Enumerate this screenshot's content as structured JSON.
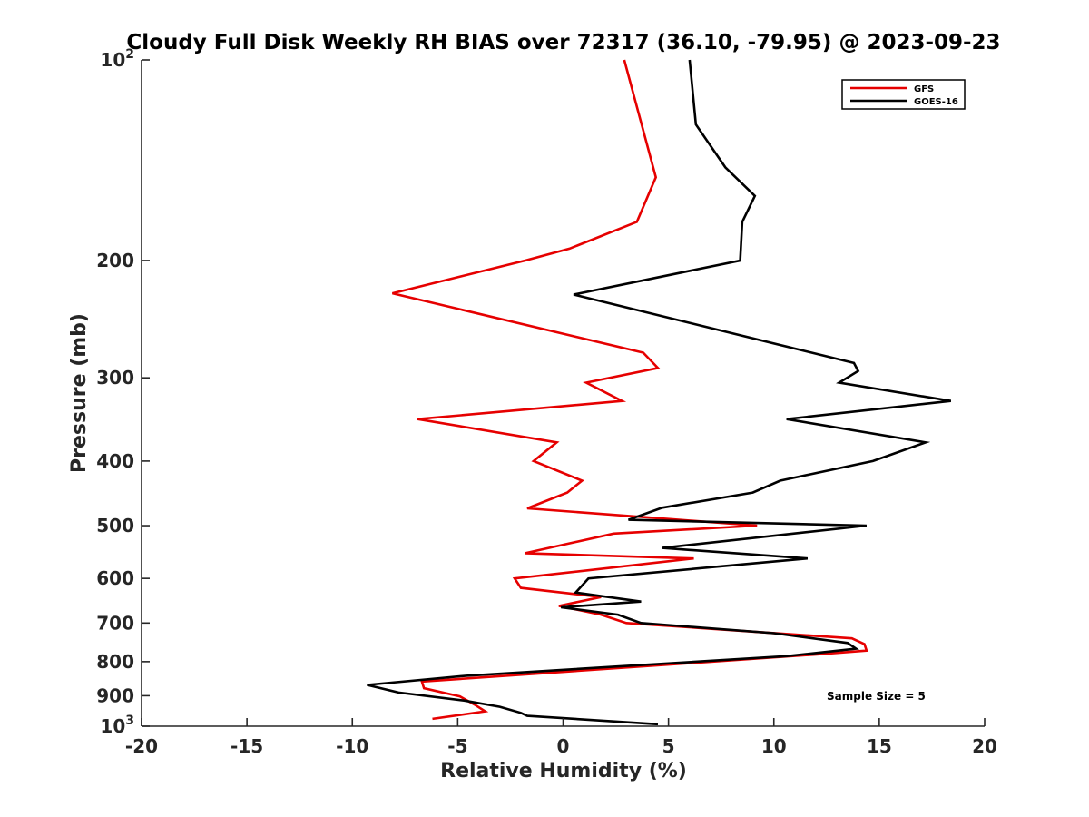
{
  "chart_data": {
    "type": "line",
    "title": "Cloudy Full Disk Weekly RH BIAS over 72317 (36.10, -79.95) @ 2023-09-23",
    "xlabel": "Relative Humidity (%)",
    "ylabel": "Pressure (mb)",
    "xlim": [
      -20,
      20
    ],
    "ylim": [
      100,
      1000
    ],
    "y_scale": "log",
    "y_reversed": true,
    "x_ticks": [
      -20,
      -15,
      -10,
      -5,
      0,
      5,
      10,
      15,
      20
    ],
    "x_tick_labels": [
      "-20",
      "-15",
      "-10",
      "-5",
      "0",
      "5",
      "10",
      "15",
      "20"
    ],
    "y_ticks": [
      100,
      200,
      300,
      400,
      500,
      600,
      700,
      800,
      900,
      1000
    ],
    "y_tick_labels": [
      {
        "base": "10",
        "exp": "2"
      },
      {
        "base": "200",
        "exp": ""
      },
      {
        "base": "300",
        "exp": ""
      },
      {
        "base": "400",
        "exp": ""
      },
      {
        "base": "500",
        "exp": ""
      },
      {
        "base": "600",
        "exp": ""
      },
      {
        "base": "700",
        "exp": ""
      },
      {
        "base": "800",
        "exp": ""
      },
      {
        "base": "900",
        "exp": ""
      },
      {
        "base": "10",
        "exp": "3"
      }
    ],
    "grid": false,
    "legend_position": "top-right",
    "annotation": "Sample Size = 5",
    "series": [
      {
        "name": "GFS",
        "color": "#e60000",
        "points": [
          [
            2.9,
            100
          ],
          [
            4.4,
            150
          ],
          [
            3.5,
            175
          ],
          [
            0.3,
            192
          ],
          [
            -1.8,
            200
          ],
          [
            -8.1,
            224
          ],
          [
            3.8,
            275
          ],
          [
            4.5,
            290
          ],
          [
            1.1,
            305
          ],
          [
            2.8,
            325
          ],
          [
            -6.9,
            346
          ],
          [
            -0.3,
            375
          ],
          [
            -1.4,
            400
          ],
          [
            0.9,
            428
          ],
          [
            0.2,
            446
          ],
          [
            -1.7,
            471
          ],
          [
            9.2,
            500
          ],
          [
            2.4,
            514
          ],
          [
            -1.8,
            550
          ],
          [
            6.2,
            560
          ],
          [
            -2.3,
            600
          ],
          [
            -2.0,
            620
          ],
          [
            1.8,
            640
          ],
          [
            -0.2,
            660
          ],
          [
            1.8,
            680
          ],
          [
            3.0,
            700
          ],
          [
            13.7,
            738
          ],
          [
            14.3,
            753
          ],
          [
            14.4,
            770
          ],
          [
            12.1,
            780
          ],
          [
            -6.7,
            857
          ],
          [
            -6.6,
            877
          ],
          [
            -4.9,
            902
          ],
          [
            -4.2,
            928
          ],
          [
            -3.7,
            950
          ],
          [
            -6.2,
            975
          ]
        ]
      },
      {
        "name": "GOES-16",
        "color": "#000000",
        "points": [
          [
            6.0,
            100
          ],
          [
            6.3,
            125
          ],
          [
            7.7,
            145
          ],
          [
            9.1,
            160
          ],
          [
            8.5,
            175
          ],
          [
            8.4,
            200
          ],
          [
            0.5,
            225
          ],
          [
            13.8,
            285
          ],
          [
            14.0,
            293
          ],
          [
            13.1,
            305
          ],
          [
            18.4,
            325
          ],
          [
            10.6,
            346
          ],
          [
            17.2,
            375
          ],
          [
            14.7,
            400
          ],
          [
            10.3,
            428
          ],
          [
            9.0,
            446
          ],
          [
            4.7,
            470
          ],
          [
            3.1,
            490
          ],
          [
            14.4,
            500
          ],
          [
            4.7,
            540
          ],
          [
            11.6,
            560
          ],
          [
            1.2,
            600
          ],
          [
            0.6,
            630
          ],
          [
            3.7,
            650
          ],
          [
            -0.1,
            663
          ],
          [
            2.6,
            680
          ],
          [
            3.7,
            700
          ],
          [
            10.0,
            725
          ],
          [
            13.5,
            750
          ],
          [
            13.9,
            765
          ],
          [
            10.6,
            785
          ],
          [
            -4.6,
            840
          ],
          [
            -9.3,
            867
          ],
          [
            -7.8,
            890
          ],
          [
            -4.7,
            915
          ],
          [
            -3.0,
            935
          ],
          [
            -2.0,
            955
          ],
          [
            -1.7,
            965
          ],
          [
            4.5,
            993
          ]
        ]
      }
    ]
  }
}
